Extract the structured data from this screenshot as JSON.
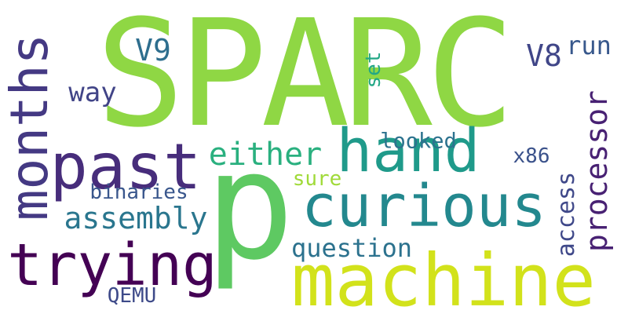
{
  "words": {
    "sparc": {
      "text": "SPARC",
      "color": "#8fd744"
    },
    "p": {
      "text": "p",
      "color": "#5ec962"
    },
    "machine": {
      "text": "machine",
      "color": "#d2e21b"
    },
    "months": {
      "text": "months",
      "color": "#443983"
    },
    "past": {
      "text": "past",
      "color": "#472d7b"
    },
    "trying": {
      "text": "trying",
      "color": "#440154"
    },
    "hand": {
      "text": "hand",
      "color": "#1f9a8a"
    },
    "curious": {
      "text": "curious",
      "color": "#23888e"
    },
    "processor": {
      "text": "processor",
      "color": "#482173"
    },
    "either": {
      "text": "either",
      "color": "#2ab07f"
    },
    "assembly": {
      "text": "assembly",
      "color": "#2a768e"
    },
    "question": {
      "text": "question",
      "color": "#2c728e"
    },
    "v9": {
      "text": "V9",
      "color": "#2e6e8e"
    },
    "v8": {
      "text": "V8",
      "color": "#404688"
    },
    "run": {
      "text": "run",
      "color": "#38588c"
    },
    "way": {
      "text": "way",
      "color": "#414487"
    },
    "set": {
      "text": "set",
      "color": "#22a785"
    },
    "looked": {
      "text": "looked",
      "color": "#2c728e"
    },
    "x86": {
      "text": "x86",
      "color": "#3b528b"
    },
    "binaries": {
      "text": "binaries",
      "color": "#39568c"
    },
    "sure": {
      "text": "sure",
      "color": "#a0da39"
    },
    "access": {
      "text": "access",
      "color": "#3f4889"
    },
    "qemu": {
      "text": "QEMU",
      "color": "#3e4a89"
    }
  }
}
